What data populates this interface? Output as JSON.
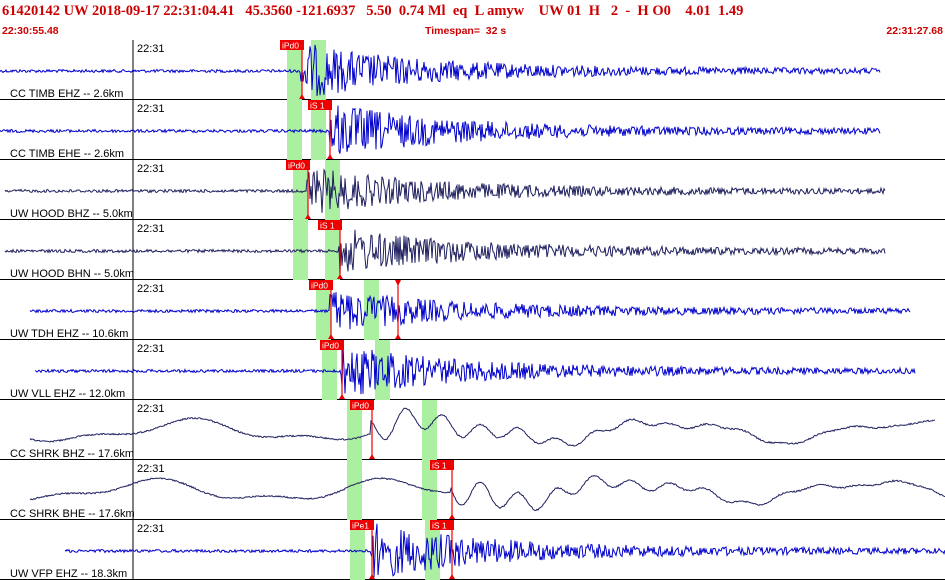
{
  "header": {
    "title": "61420142 UW 2018-09-17 22:31:04.41   45.3560 -121.6937   5.50  0.74 Ml  eq  L amyw    UW 01  H   2  -  H O0    4.01  1.49",
    "start_time": "22:30:55.48",
    "timespan": "Timespan=  32 s",
    "end_time": "22:31:27.68"
  },
  "colors": {
    "accent": "#cc0000",
    "pick_bg": "#ee0000",
    "green_band": "#aaf0a0",
    "trace_blue": "#0000cc",
    "trace_navy": "#202060"
  },
  "traces": [
    {
      "label": "CC TIMB EHZ -- 2.6km",
      "tick": "22:31",
      "pick": "iPd0",
      "pick2": "",
      "color": "#0000cc",
      "kind": "hf",
      "amp": 1.0,
      "onset": 0.44
    },
    {
      "label": "CC TIMB EHE -- 2.6km",
      "tick": "22:31",
      "pick": "iS 1",
      "pick2": "",
      "color": "#0000cc",
      "kind": "hf",
      "amp": 1.0,
      "onset": 0.44
    },
    {
      "label": "UW HOOD BHZ -- 5.0km",
      "tick": "22:31",
      "pick": "iPd0",
      "pick2": "",
      "color": "#202060",
      "kind": "hf",
      "amp": 0.8,
      "onset": 0.41
    },
    {
      "label": "UW HOOD BHN -- 5.0km",
      "tick": "22:31",
      "pick": "iS 1",
      "pick2": "",
      "color": "#202060",
      "kind": "hf",
      "amp": 0.8,
      "onset": 0.41
    },
    {
      "label": "UW TDH EHZ -- 10.6km",
      "tick": "22:31",
      "pick": "iPd0",
      "pick2": "",
      "color": "#0000cc",
      "kind": "hf",
      "amp": 0.7,
      "onset": 0.45
    },
    {
      "label": "UW VLL EHZ -- 12.0km",
      "tick": "22:31",
      "pick": "iPd0",
      "pick2": "",
      "color": "#0000cc",
      "kind": "hf",
      "amp": 0.9,
      "onset": 0.46
    },
    {
      "label": "CC SHRK BHZ -- 17.6km",
      "tick": "22:31",
      "pick": "iPd0",
      "pick2": "",
      "color": "#202060",
      "kind": "lf",
      "amp": 1.0,
      "onset": 0.5
    },
    {
      "label": "CC SHRK BHE -- 17.6km",
      "tick": "22:31",
      "pick": "iS 1",
      "pick2": "",
      "color": "#202060",
      "kind": "lf",
      "amp": 1.0,
      "onset": 0.55
    },
    {
      "label": "UW VFP EHZ -- 18.3km",
      "tick": "22:31",
      "pick": "iPe1",
      "pick2": "iS 1",
      "color": "#0000cc",
      "kind": "hf",
      "amp": 1.0,
      "onset": 0.48
    }
  ]
}
